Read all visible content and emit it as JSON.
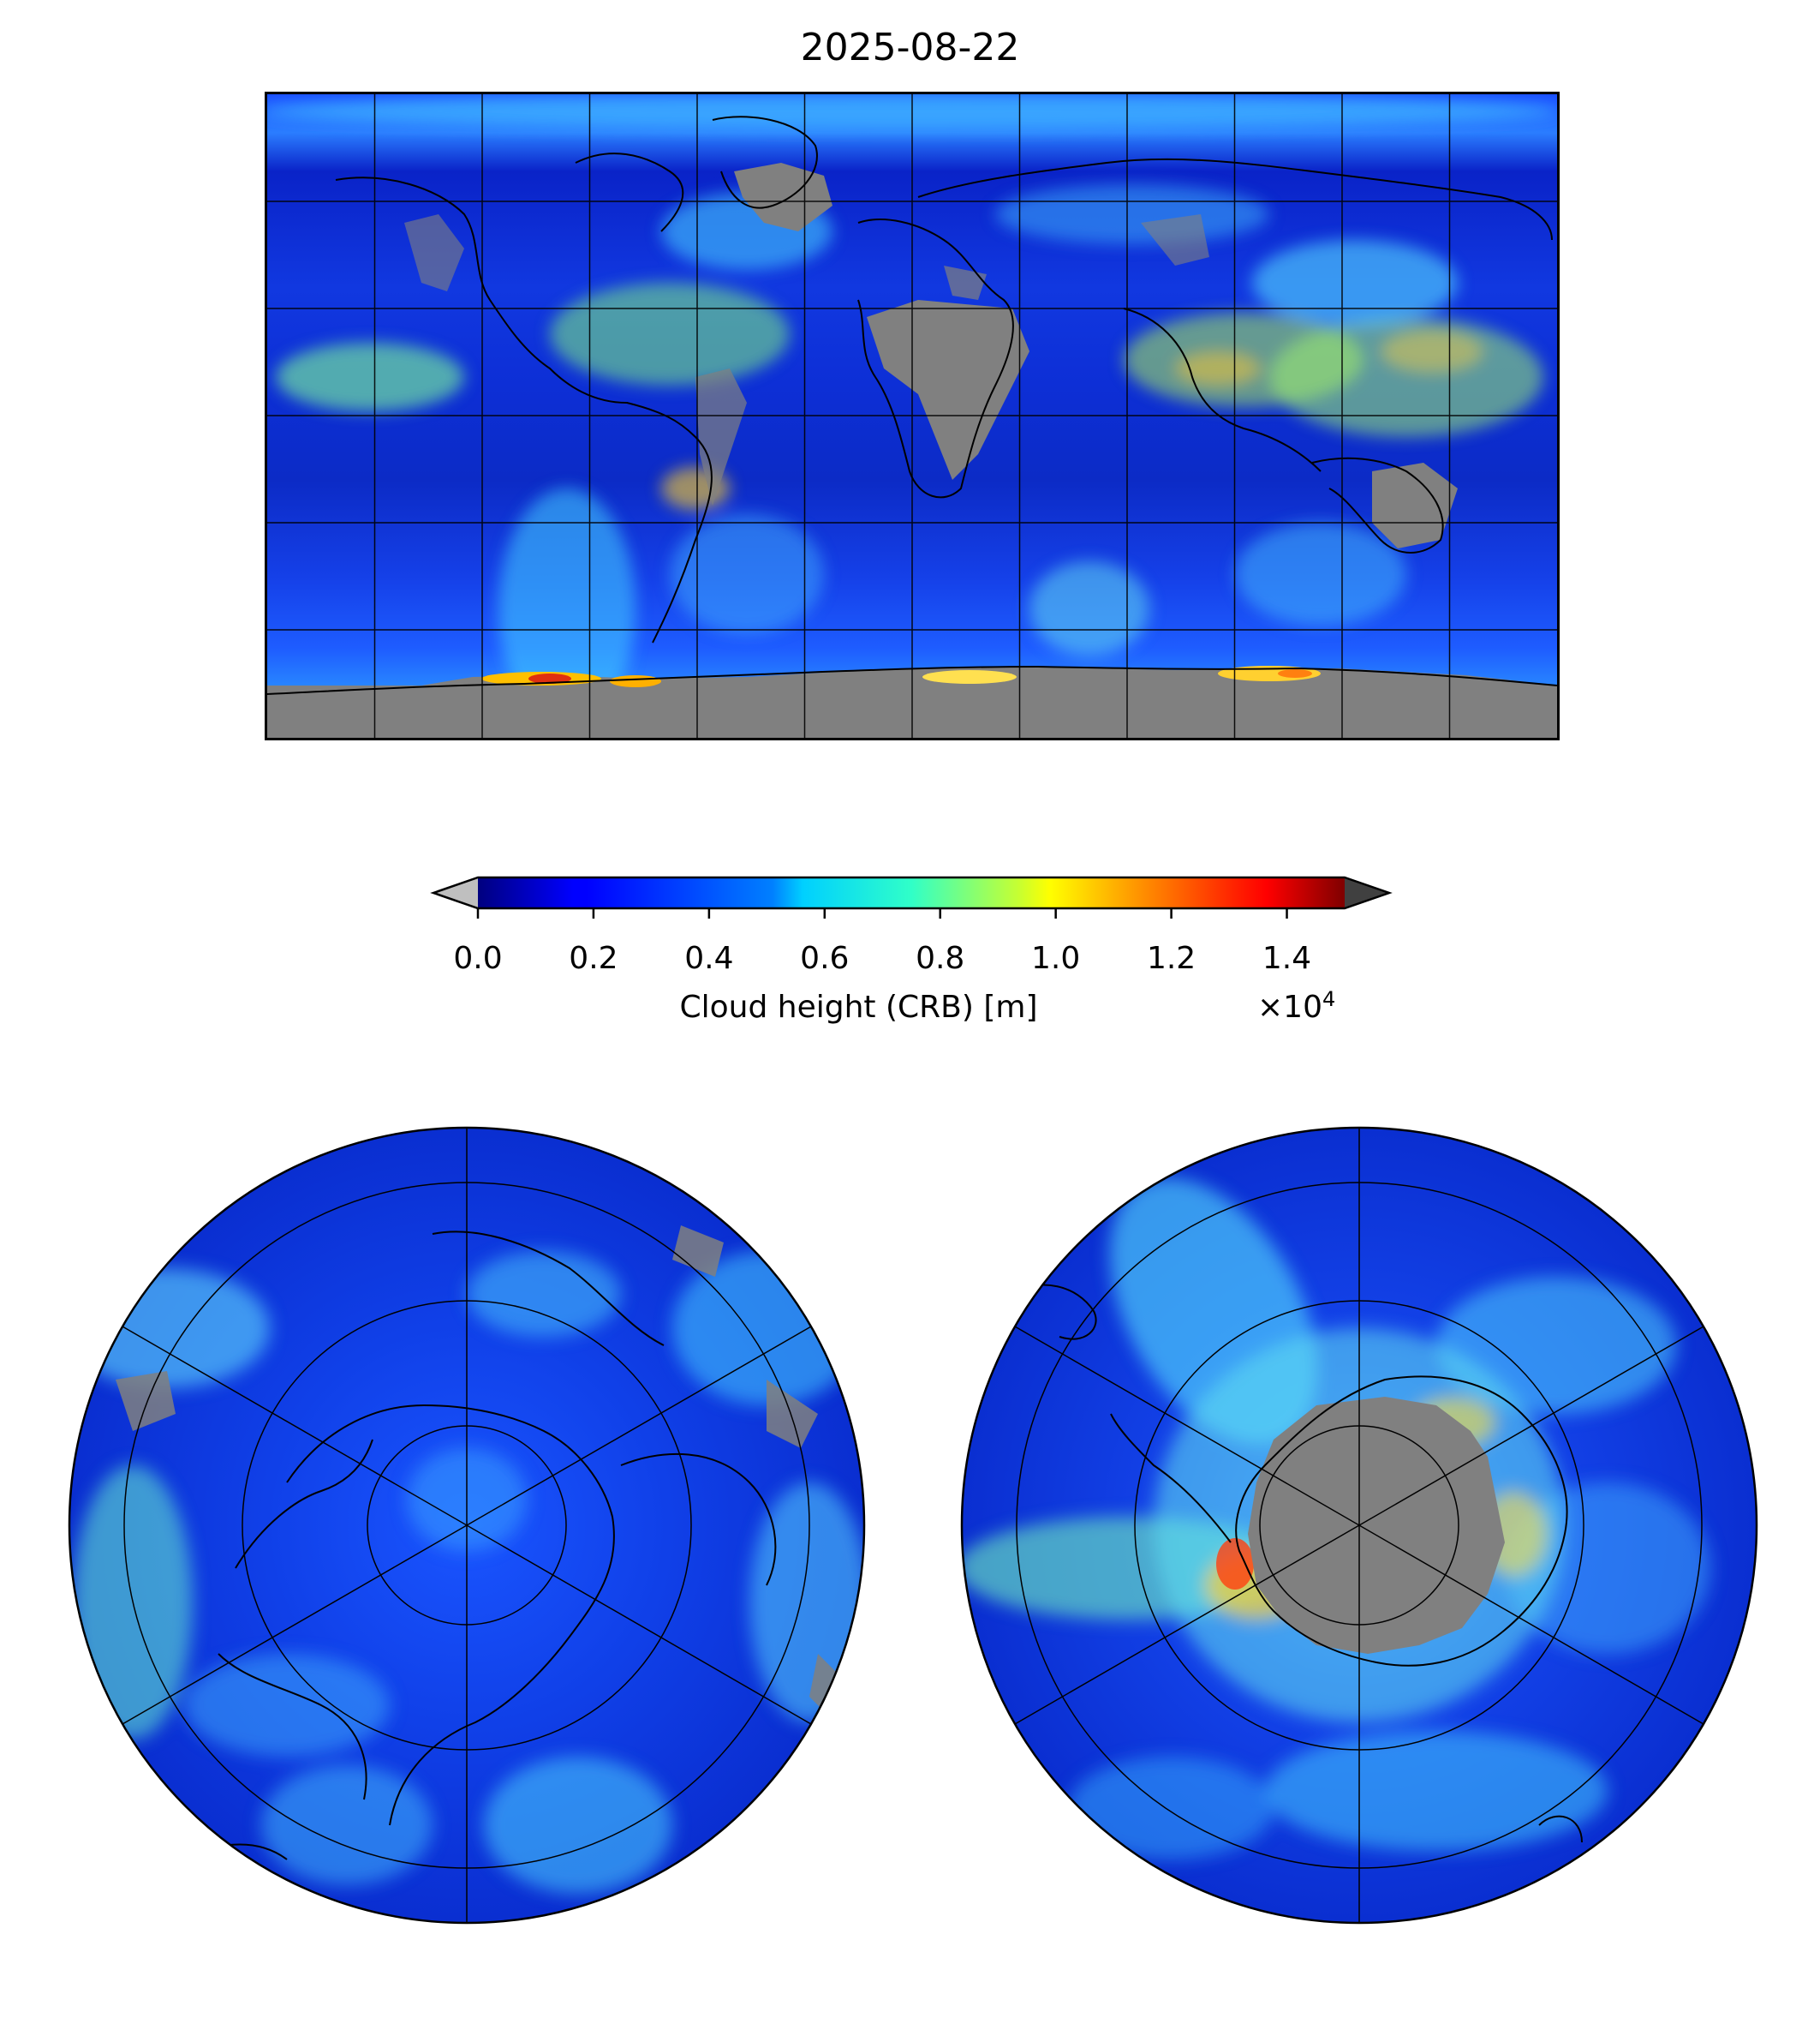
{
  "figure": {
    "title": "2025-08-22"
  },
  "colorbar": {
    "label": "Cloud height (CRB) [m]",
    "multiplier": "×10",
    "exponent": "4",
    "ticks": [
      "0.0",
      "0.2",
      "0.4",
      "0.6",
      "0.8",
      "1.0",
      "1.2",
      "1.4"
    ],
    "range": [
      0,
      15000
    ],
    "colormap": "jet",
    "under_color": "#bfbfbf",
    "over_color": "#404040"
  },
  "maps": {
    "no_data_color": "#808080",
    "global_projection": "plate-carree",
    "north_projection": "north-polar-stereographic",
    "south_projection": "south-polar-stereographic"
  }
}
